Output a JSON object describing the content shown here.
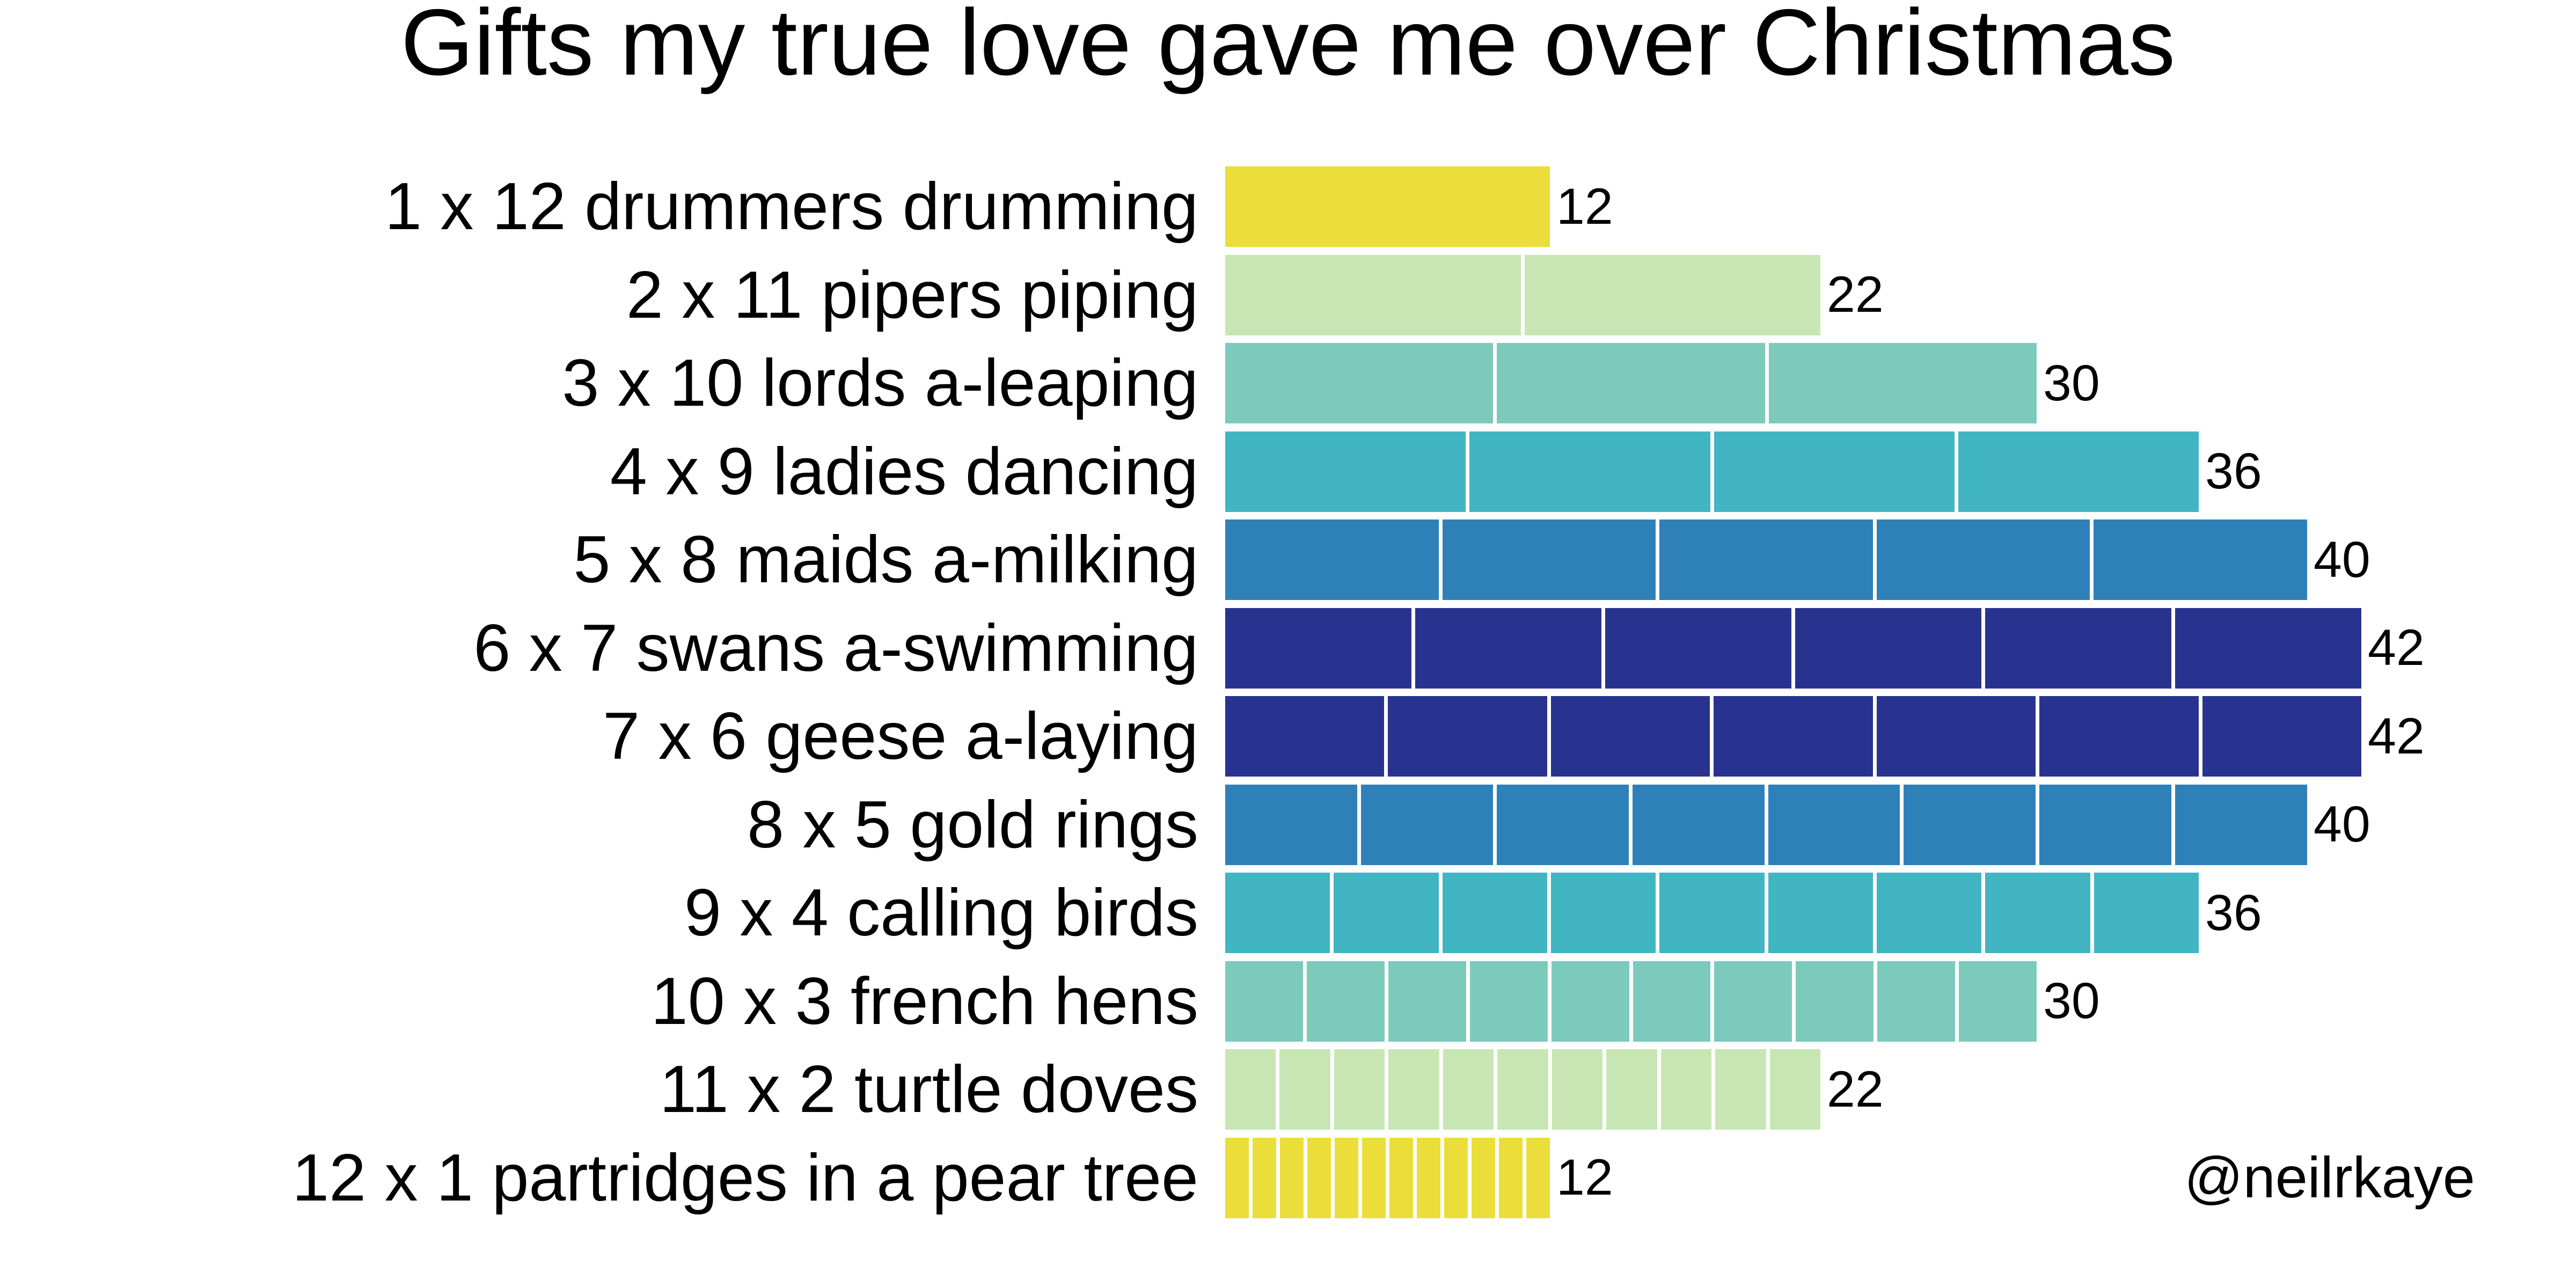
{
  "title": "Gifts my true love gave me over Christmas",
  "attribution": "@neilrkaye",
  "chart_data": {
    "type": "bar",
    "orientation": "horizontal",
    "title": "Gifts my true love gave me over Christmas",
    "categories": [
      "1 x 12 drummers drumming",
      "2 x 11 pipers piping",
      "3 x 10 lords a-leaping",
      "4 x 9 ladies dancing",
      "5 x 8 maids a-milking",
      "6 x 7 swans a-swimming",
      "7 x 6 geese a-laying",
      "8 x 5 gold rings",
      "9 x 4 calling birds",
      "10 x 3 french hens",
      "11 x 2 turtle doves",
      "12 x 1 partridges in a pear tree"
    ],
    "values": [
      12,
      22,
      30,
      36,
      40,
      42,
      42,
      40,
      36,
      30,
      22,
      12
    ],
    "segments_per_bar": [
      1,
      2,
      3,
      4,
      5,
      6,
      7,
      8,
      9,
      10,
      11,
      12
    ],
    "units_per_segment": [
      12,
      11,
      10,
      9,
      8,
      7,
      6,
      5,
      4,
      3,
      2,
      1
    ],
    "value_labels": [
      "12",
      "22",
      "30",
      "36",
      "40",
      "42",
      "42",
      "40",
      "36",
      "30",
      "22",
      "12"
    ],
    "bar_colors": [
      "#ebde3a",
      "#c8e6b4",
      "#7ccabc",
      "#41b5c2",
      "#2e80b9",
      "#28338f",
      "#28338f",
      "#2e80b9",
      "#41b5c2",
      "#7ccabc",
      "#c8e6b4",
      "#ebde3a"
    ],
    "segment_gap_color": "#ffffff",
    "background_color": "#ffffff",
    "text_color": "#000000",
    "xlim": [
      0,
      42
    ],
    "grid": false,
    "axis_lines": false,
    "legend": "none",
    "value_labels_shown": true
  }
}
